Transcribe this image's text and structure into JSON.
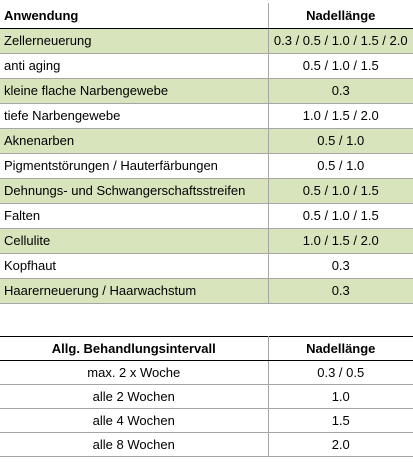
{
  "table1": {
    "header": {
      "col1": "Anwendung",
      "col2": "Nadellänge"
    },
    "rows": [
      {
        "label": "Zellerneuerung",
        "value": "0.3 / 0.5 / 1.0 / 1.5 / 2.0",
        "highlight": true
      },
      {
        "label": "anti aging",
        "value": "0.5 / 1.0 / 1.5",
        "highlight": false
      },
      {
        "label": "kleine flache Narbengewebe",
        "value": "0.3",
        "highlight": true
      },
      {
        "label": "tiefe Narbengewebe",
        "value": "1.0 / 1.5 / 2.0",
        "highlight": false
      },
      {
        "label": "Aknenarben",
        "value": "0.5 / 1.0",
        "highlight": true
      },
      {
        "label": "Pigmentstörungen / Hauterfärbungen",
        "value": "0.5 / 1.0",
        "highlight": false
      },
      {
        "label": "Dehnungs- und Schwangerschaftsstreifen",
        "value": "0.5 / 1.0 / 1.5",
        "highlight": true
      },
      {
        "label": "Falten",
        "value": "0.5 / 1.0 / 1.5",
        "highlight": false
      },
      {
        "label": "Cellulite",
        "value": "1.0 / 1.5 / 2.0",
        "highlight": true
      },
      {
        "label": "Kopfhaut",
        "value": "0.3",
        "highlight": false
      },
      {
        "label": "Haarerneuerung / Haarwachstum",
        "value": "0.3",
        "highlight": true
      }
    ]
  },
  "table2": {
    "header": {
      "col1": "Allg. Behandlungsintervall",
      "col2": "Nadellänge"
    },
    "rows": [
      {
        "label": "max. 2 x Woche",
        "value": "0.3 / 0.5"
      },
      {
        "label": "alle 2 Wochen",
        "value": "1.0"
      },
      {
        "label": "alle 4 Wochen",
        "value": "1.5"
      },
      {
        "label": "alle 8 Wochen",
        "value": "2.0"
      }
    ]
  },
  "colors": {
    "highlight": "#d8e4bc",
    "grid": "#a6a6a6"
  }
}
